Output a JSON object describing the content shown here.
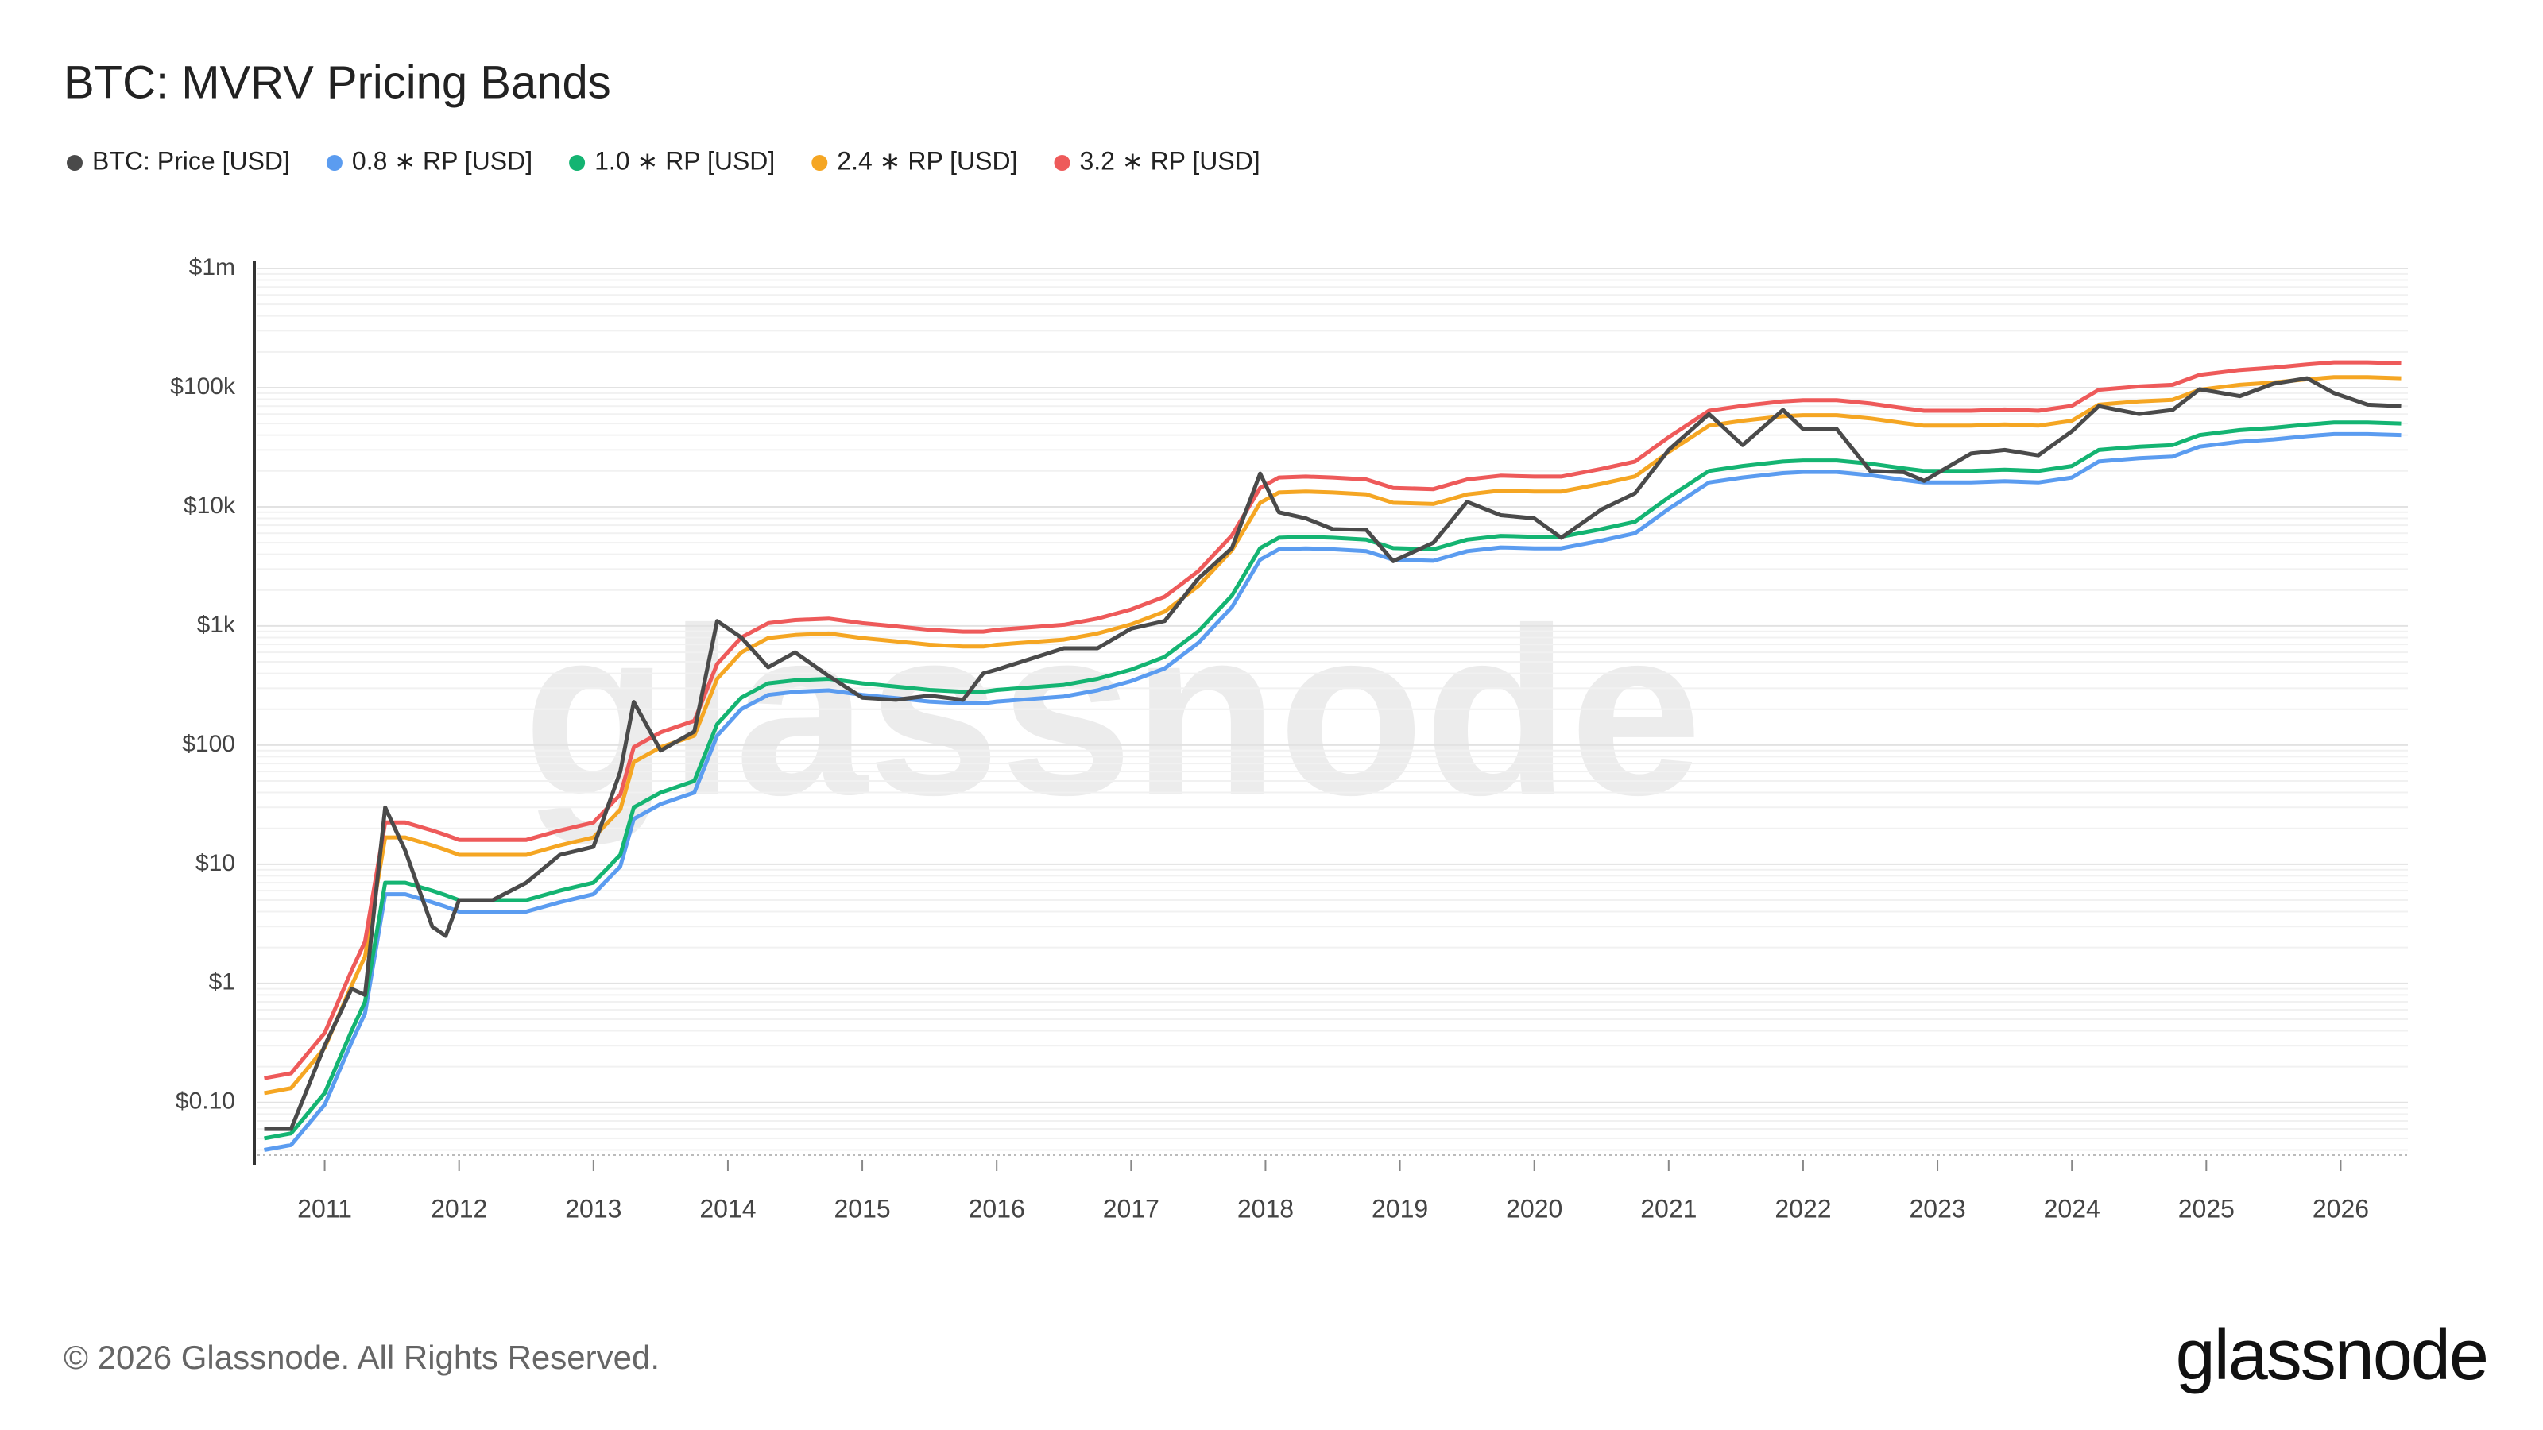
{
  "chart_data": {
    "type": "line",
    "title": "BTC: MVRV Pricing Bands",
    "watermark": "glassnode",
    "footer": "© 2026 Glassnode. All Rights Reserved.",
    "logo": "glassnode",
    "log_scale": true,
    "grid": true,
    "legend": "top-left",
    "x": [
      2010.55,
      2010.75,
      2011.0,
      2011.2,
      2011.3,
      2011.45,
      2011.6,
      2011.8,
      2011.9,
      2012.0,
      2012.25,
      2012.5,
      2012.75,
      2013.0,
      2013.2,
      2013.3,
      2013.5,
      2013.75,
      2013.92,
      2014.1,
      2014.3,
      2014.5,
      2014.75,
      2015.0,
      2015.25,
      2015.5,
      2015.75,
      2015.9,
      2016.0,
      2016.5,
      2016.75,
      2017.0,
      2017.25,
      2017.5,
      2017.75,
      2017.96,
      2018.1,
      2018.3,
      2018.5,
      2018.75,
      2018.95,
      2019.25,
      2019.5,
      2019.75,
      2020.0,
      2020.2,
      2020.5,
      2020.75,
      2021.0,
      2021.3,
      2021.55,
      2021.85,
      2022.0,
      2022.25,
      2022.5,
      2022.75,
      2022.9,
      2023.25,
      2023.5,
      2023.75,
      2024.0,
      2024.2,
      2024.5,
      2024.75,
      2024.95,
      2025.25,
      2025.5,
      2025.75,
      2025.95,
      2026.2,
      2026.45
    ],
    "xlim": [
      2010.5,
      2026.5
    ],
    "xticks": [
      2011,
      2012,
      2013,
      2014,
      2015,
      2016,
      2017,
      2018,
      2019,
      2020,
      2021,
      2022,
      2023,
      2024,
      2025,
      2026
    ],
    "ylim": [
      0.033,
      1000000
    ],
    "yticks": [
      {
        "value": 0.1,
        "label": "$0.10"
      },
      {
        "value": 1,
        "label": "$1"
      },
      {
        "value": 10,
        "label": "$10"
      },
      {
        "value": 100,
        "label": "$100"
      },
      {
        "value": 1000,
        "label": "$1k"
      },
      {
        "value": 10000,
        "label": "$10k"
      },
      {
        "value": 100000,
        "label": "$100k"
      },
      {
        "value": 1000000,
        "label": "$1m"
      }
    ],
    "series": [
      {
        "name": "BTC: Price [USD]",
        "color": "#4a4a4a",
        "values": [
          0.06,
          0.06,
          0.3,
          0.9,
          0.8,
          30,
          13,
          3,
          2.5,
          5,
          5,
          7,
          12,
          14,
          60,
          230,
          90,
          130,
          1100,
          800,
          450,
          600,
          380,
          250,
          240,
          260,
          240,
          400,
          430,
          650,
          650,
          950,
          1100,
          2500,
          4500,
          19000,
          9000,
          8000,
          6500,
          6400,
          3500,
          5000,
          11000,
          8500,
          8000,
          5500,
          9500,
          13000,
          30000,
          60000,
          33000,
          65000,
          45000,
          45000,
          20000,
          19500,
          16500,
          28000,
          30000,
          27000,
          43000,
          70000,
          60000,
          65000,
          97000,
          85000,
          108000,
          120000,
          90000,
          72000,
          70000
        ]
      },
      {
        "name": "0.8 ∗ RP [USD]",
        "color": "#5b9cf0",
        "values": [
          0.04,
          0.044,
          0.096,
          0.32,
          0.56,
          5.6,
          5.6,
          4.8,
          4.4,
          4,
          4,
          4,
          4.8,
          5.6,
          9.6,
          24,
          32,
          40,
          120,
          200,
          264,
          280,
          288,
          264,
          248,
          232,
          224,
          224,
          232,
          256,
          288,
          344,
          440,
          720,
          1440,
          3600,
          4400,
          4480,
          4400,
          4240,
          3600,
          3520,
          4240,
          4560,
          4480,
          4480,
          5200,
          6000,
          9600,
          16000,
          17600,
          19200,
          19600,
          19600,
          18400,
          16800,
          16000,
          16000,
          16400,
          16000,
          17600,
          24000,
          25600,
          26400,
          32000,
          35200,
          36800,
          39200,
          40800,
          40800,
          40000
        ]
      },
      {
        "name": "1.0 ∗ RP [USD]",
        "color": "#14b472",
        "values": [
          0.05,
          0.055,
          0.12,
          0.4,
          0.7,
          7,
          7,
          6,
          5.5,
          5,
          5,
          5,
          6,
          7,
          12,
          30,
          40,
          50,
          150,
          250,
          330,
          350,
          360,
          330,
          310,
          290,
          280,
          280,
          290,
          320,
          360,
          430,
          550,
          900,
          1800,
          4500,
          5500,
          5600,
          5500,
          5300,
          4500,
          4400,
          5300,
          5700,
          5600,
          5600,
          6500,
          7500,
          12000,
          20000,
          22000,
          24000,
          24500,
          24500,
          23000,
          21000,
          20000,
          20000,
          20500,
          20000,
          22000,
          30000,
          32000,
          33000,
          40000,
          44000,
          46000,
          49000,
          51000,
          51000,
          50000
        ]
      },
      {
        "name": "2.4 ∗ RP [USD]",
        "color": "#f5a623",
        "values": [
          0.12,
          0.132,
          0.288,
          0.96,
          1.68,
          16.8,
          16.8,
          14.4,
          13.2,
          12,
          12,
          12,
          14.4,
          16.8,
          28.8,
          72,
          96,
          120,
          360,
          600,
          792,
          840,
          864,
          792,
          744,
          696,
          672,
          672,
          696,
          768,
          864,
          1032,
          1320,
          2160,
          4320,
          10800,
          13200,
          13440,
          13200,
          12720,
          10800,
          10560,
          12720,
          13680,
          13440,
          13440,
          15600,
          18000,
          28800,
          48000,
          52800,
          57600,
          58800,
          58800,
          55200,
          50400,
          48000,
          48000,
          49200,
          48000,
          52800,
          72000,
          76800,
          79200,
          96000,
          105600,
          110400,
          117600,
          122400,
          122400,
          120000
        ]
      },
      {
        "name": "3.2 ∗ RP [USD]",
        "color": "#ee5a5a",
        "values": [
          0.16,
          0.176,
          0.384,
          1.28,
          2.24,
          22.4,
          22.4,
          19.2,
          17.6,
          16,
          16,
          16,
          19.2,
          22.4,
          38.4,
          96,
          128,
          160,
          480,
          800,
          1056,
          1120,
          1152,
          1056,
          992,
          928,
          896,
          896,
          928,
          1024,
          1152,
          1376,
          1760,
          2880,
          5760,
          14400,
          17600,
          17920,
          17600,
          16960,
          14400,
          14080,
          16960,
          18240,
          17920,
          17920,
          20800,
          24000,
          38400,
          64000,
          70400,
          76800,
          78400,
          78400,
          73600,
          67200,
          64000,
          64000,
          65600,
          64000,
          70400,
          96000,
          102400,
          105600,
          128000,
          140800,
          147200,
          156800,
          163200,
          163200,
          160000
        ]
      }
    ]
  }
}
